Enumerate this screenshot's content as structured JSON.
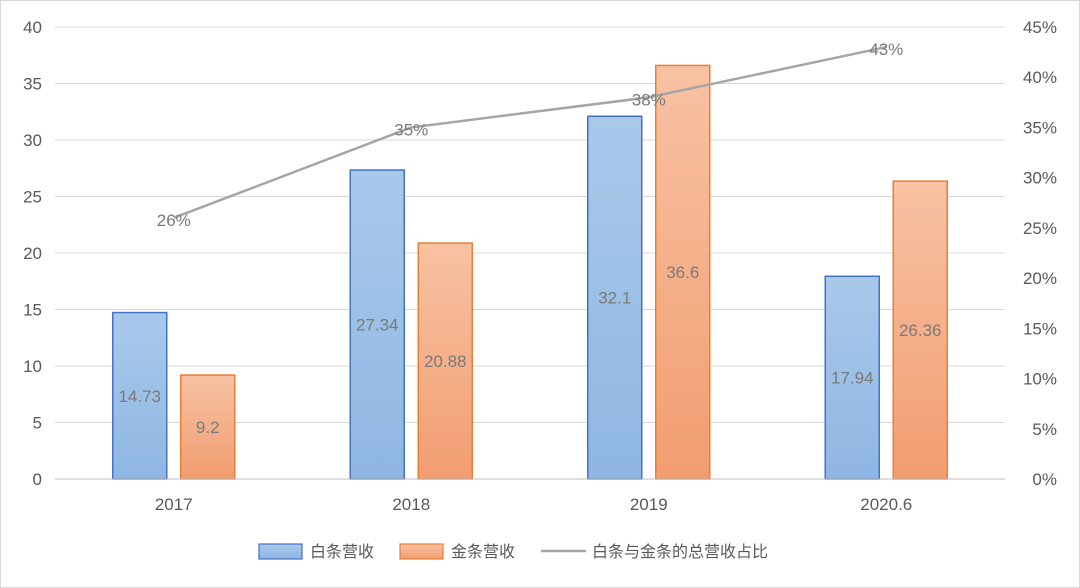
{
  "colors": {
    "bar1": "#9dc3e6",
    "bar1_stroke": "#4472c4",
    "bar2": "#f4b183",
    "bar2_stroke": "#ed7d31",
    "line": "#a5a5a5",
    "grid": "#d9d9d9",
    "text": "#595959"
  },
  "chart_data": {
    "type": "bar",
    "categories": [
      "2017",
      "2018",
      "2019",
      "2020.6"
    ],
    "series": [
      {
        "name": "白条营收",
        "values": [
          14.73,
          27.34,
          32.1,
          17.94
        ],
        "labels": [
          "14.73",
          "27.34",
          "32.1",
          "17.94"
        ]
      },
      {
        "name": "金条营收",
        "values": [
          9.2,
          20.88,
          36.6,
          26.36
        ],
        "labels": [
          "9.2",
          "20.88",
          "36.6",
          "26.36"
        ]
      }
    ],
    "line_series": {
      "name": "白条与金条的总营收占比",
      "axis": "right",
      "values": [
        26,
        35,
        38,
        43
      ],
      "labels": [
        "26%",
        "35%",
        "38%",
        "43%"
      ]
    },
    "left_axis": {
      "ylim": [
        0,
        40
      ],
      "ticks": [
        "0",
        "5",
        "10",
        "15",
        "20",
        "25",
        "30",
        "35",
        "40"
      ]
    },
    "right_axis": {
      "ylim": [
        0,
        45
      ],
      "ticks": [
        "0%",
        "5%",
        "10%",
        "15%",
        "20%",
        "25%",
        "30%",
        "35%",
        "40%",
        "45%"
      ]
    },
    "grid": true,
    "legend_position": "bottom"
  }
}
